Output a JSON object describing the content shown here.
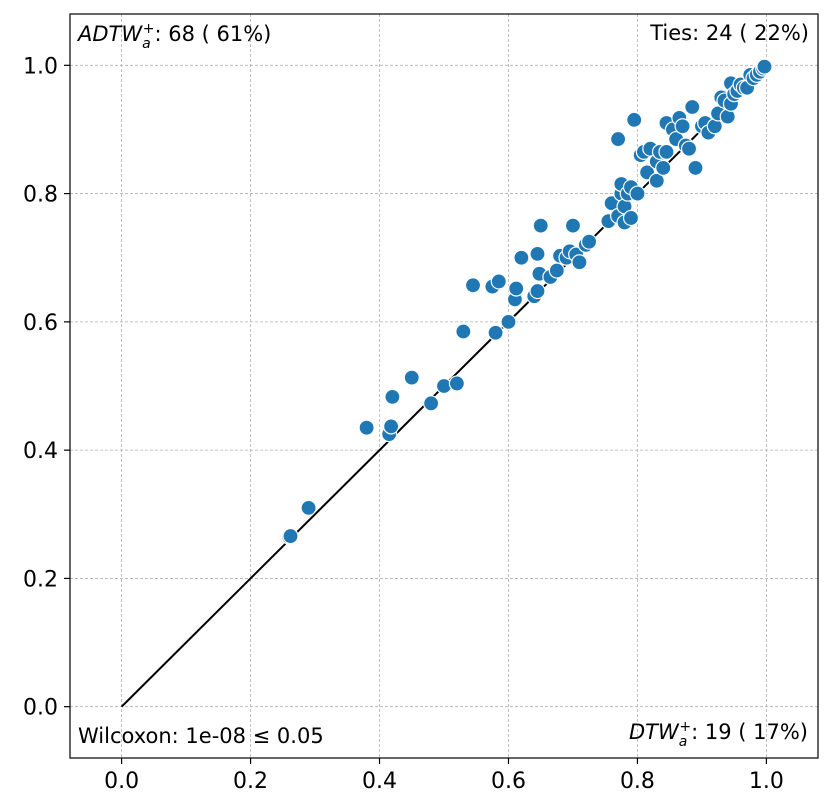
{
  "chart_data": {
    "type": "scatter",
    "title": "",
    "xlabel": "",
    "ylabel": "",
    "xlim": [
      -0.08,
      1.08
    ],
    "ylim": [
      -0.08,
      1.08
    ],
    "grid": true,
    "x_ticks": [
      "0.0",
      "0.2",
      "0.4",
      "0.6",
      "0.8",
      "1.0"
    ],
    "y_ticks": [
      "0.0",
      "0.2",
      "0.4",
      "0.6",
      "0.8",
      "1.0"
    ],
    "point_color": "#1f77b4",
    "diagonal_color": "#000000",
    "diagonal": [
      [
        0,
        0
      ],
      [
        1,
        1
      ]
    ],
    "annotations": {
      "top_left": {
        "name": "ADTW",
        "sub": "a",
        "sup": "+",
        "rest": ": 68 ( 61%)"
      },
      "top_right": "Ties: 24 ( 22%)",
      "bottom_left": "Wilcoxon: 1e-08 ≤ 0.05",
      "bottom_right": {
        "name": "DTW",
        "sub": "a",
        "sup": "+",
        "rest": ": 19 ( 17%)"
      }
    },
    "points": [
      [
        0.26,
        0.265
      ],
      [
        0.262,
        0.266
      ],
      [
        0.29,
        0.31
      ],
      [
        0.38,
        0.435
      ],
      [
        0.415,
        0.425
      ],
      [
        0.418,
        0.437
      ],
      [
        0.42,
        0.483
      ],
      [
        0.45,
        0.513
      ],
      [
        0.48,
        0.473
      ],
      [
        0.5,
        0.5
      ],
      [
        0.52,
        0.504
      ],
      [
        0.53,
        0.585
      ],
      [
        0.545,
        0.657
      ],
      [
        0.575,
        0.655
      ],
      [
        0.58,
        0.583
      ],
      [
        0.585,
        0.663
      ],
      [
        0.6,
        0.6
      ],
      [
        0.61,
        0.635
      ],
      [
        0.612,
        0.652
      ],
      [
        0.62,
        0.7
      ],
      [
        0.64,
        0.64
      ],
      [
        0.645,
        0.648
      ],
      [
        0.645,
        0.706
      ],
      [
        0.648,
        0.675
      ],
      [
        0.65,
        0.75
      ],
      [
        0.665,
        0.67
      ],
      [
        0.675,
        0.68
      ],
      [
        0.68,
        0.703
      ],
      [
        0.69,
        0.7
      ],
      [
        0.695,
        0.71
      ],
      [
        0.7,
        0.75
      ],
      [
        0.705,
        0.705
      ],
      [
        0.71,
        0.693
      ],
      [
        0.72,
        0.72
      ],
      [
        0.725,
        0.725
      ],
      [
        0.755,
        0.757
      ],
      [
        0.76,
        0.785
      ],
      [
        0.77,
        0.765
      ],
      [
        0.775,
        0.8
      ],
      [
        0.775,
        0.815
      ],
      [
        0.78,
        0.755
      ],
      [
        0.78,
        0.78
      ],
      [
        0.785,
        0.8
      ],
      [
        0.79,
        0.81
      ],
      [
        0.79,
        0.762
      ],
      [
        0.77,
        0.885
      ],
      [
        0.795,
        0.915
      ],
      [
        0.8,
        0.8
      ],
      [
        0.805,
        0.86
      ],
      [
        0.81,
        0.865
      ],
      [
        0.815,
        0.833
      ],
      [
        0.82,
        0.87
      ],
      [
        0.83,
        0.82
      ],
      [
        0.83,
        0.85
      ],
      [
        0.835,
        0.865
      ],
      [
        0.84,
        0.84
      ],
      [
        0.845,
        0.91
      ],
      [
        0.845,
        0.865
      ],
      [
        0.855,
        0.9
      ],
      [
        0.86,
        0.885
      ],
      [
        0.865,
        0.918
      ],
      [
        0.87,
        0.905
      ],
      [
        0.875,
        0.875
      ],
      [
        0.88,
        0.87
      ],
      [
        0.885,
        0.935
      ],
      [
        0.89,
        0.84
      ],
      [
        0.9,
        0.905
      ],
      [
        0.905,
        0.91
      ],
      [
        0.91,
        0.895
      ],
      [
        0.92,
        0.905
      ],
      [
        0.925,
        0.925
      ],
      [
        0.93,
        0.95
      ],
      [
        0.935,
        0.945
      ],
      [
        0.94,
        0.92
      ],
      [
        0.945,
        0.94
      ],
      [
        0.945,
        0.972
      ],
      [
        0.95,
        0.955
      ],
      [
        0.955,
        0.96
      ],
      [
        0.96,
        0.97
      ],
      [
        0.965,
        0.965
      ],
      [
        0.97,
        0.965
      ],
      [
        0.975,
        0.985
      ],
      [
        0.98,
        0.98
      ],
      [
        0.985,
        0.985
      ],
      [
        0.99,
        0.99
      ],
      [
        0.995,
        0.995
      ],
      [
        0.997,
        0.998
      ]
    ]
  }
}
